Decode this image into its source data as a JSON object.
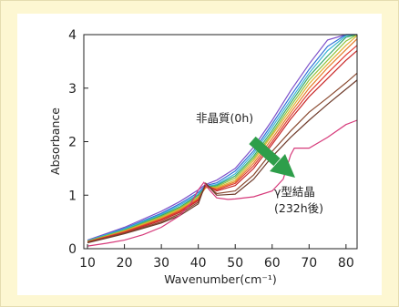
{
  "chart_data": {
    "type": "line",
    "title": "",
    "xlabel": "Wavenumber(cm⁻¹)",
    "ylabel": "Absorbance",
    "xlim": [
      9,
      83
    ],
    "ylim": [
      0,
      4
    ],
    "x_ticks": [
      "10",
      "20",
      "30",
      "40",
      "50",
      "60",
      "70",
      "80"
    ],
    "y_ticks": [
      "0",
      "1",
      "2",
      "3",
      "4"
    ],
    "grid": false,
    "annotations": {
      "start": "非晶質(0h)",
      "end_line1": "γ型結晶",
      "end_line2": "(232h後)"
    },
    "arrow_color": "#2e9e4a",
    "series": [
      {
        "color": "#7d4fc9",
        "x": [
          10,
          20,
          30,
          35,
          40,
          42,
          45,
          50,
          55,
          60,
          65,
          70,
          75,
          80,
          83
        ],
        "y": [
          0.16,
          0.4,
          0.7,
          0.88,
          1.1,
          1.2,
          1.28,
          1.5,
          1.9,
          2.4,
          2.95,
          3.45,
          3.9,
          4.05,
          4.05
        ]
      },
      {
        "color": "#2f6fd6",
        "x": [
          10,
          20,
          30,
          35,
          40,
          42,
          45,
          50,
          55,
          60,
          65,
          70,
          75,
          80,
          83
        ],
        "y": [
          0.15,
          0.38,
          0.66,
          0.84,
          1.05,
          1.18,
          1.23,
          1.45,
          1.83,
          2.33,
          2.85,
          3.35,
          3.78,
          4.0,
          4.05
        ]
      },
      {
        "color": "#39b5d6",
        "x": [
          10,
          20,
          30,
          35,
          40,
          42,
          45,
          50,
          55,
          60,
          65,
          70,
          75,
          80,
          83
        ],
        "y": [
          0.15,
          0.37,
          0.64,
          0.81,
          1.02,
          1.16,
          1.2,
          1.4,
          1.78,
          2.27,
          2.78,
          3.28,
          3.7,
          3.98,
          4.05
        ]
      },
      {
        "color": "#39a86a",
        "x": [
          10,
          20,
          30,
          35,
          40,
          42,
          45,
          50,
          55,
          60,
          65,
          70,
          75,
          80,
          83
        ],
        "y": [
          0.14,
          0.35,
          0.62,
          0.78,
          1.0,
          1.15,
          1.18,
          1.36,
          1.73,
          2.21,
          2.72,
          3.22,
          3.6,
          3.95,
          4.05
        ]
      },
      {
        "color": "#8cc43c",
        "x": [
          10,
          20,
          30,
          35,
          40,
          42,
          45,
          50,
          55,
          60,
          65,
          70,
          75,
          80,
          83
        ],
        "y": [
          0.14,
          0.34,
          0.6,
          0.76,
          0.97,
          1.14,
          1.16,
          1.32,
          1.69,
          2.16,
          2.66,
          3.15,
          3.52,
          3.88,
          4.02
        ]
      },
      {
        "color": "#e0b030",
        "x": [
          10,
          20,
          30,
          35,
          40,
          42,
          45,
          50,
          55,
          60,
          65,
          70,
          75,
          80,
          83
        ],
        "y": [
          0.13,
          0.33,
          0.58,
          0.74,
          0.95,
          1.14,
          1.14,
          1.28,
          1.65,
          2.12,
          2.6,
          3.08,
          3.45,
          3.8,
          3.98
        ]
      },
      {
        "color": "#e57c2a",
        "x": [
          10,
          20,
          30,
          35,
          40,
          42,
          45,
          50,
          55,
          60,
          65,
          70,
          75,
          80,
          83
        ],
        "y": [
          0.13,
          0.32,
          0.56,
          0.72,
          0.93,
          1.15,
          1.12,
          1.25,
          1.6,
          2.06,
          2.54,
          3.0,
          3.38,
          3.72,
          3.92
        ]
      },
      {
        "color": "#e03a2e",
        "x": [
          10,
          20,
          30,
          35,
          40,
          42,
          45,
          50,
          55,
          60,
          65,
          70,
          75,
          80,
          83
        ],
        "y": [
          0.13,
          0.31,
          0.55,
          0.7,
          0.92,
          1.18,
          1.1,
          1.22,
          1.55,
          2.0,
          2.48,
          2.92,
          3.28,
          3.62,
          3.8
        ]
      },
      {
        "color": "#c82828",
        "x": [
          10,
          20,
          30,
          35,
          40,
          42,
          45,
          50,
          55,
          60,
          65,
          70,
          75,
          80,
          83
        ],
        "y": [
          0.12,
          0.3,
          0.53,
          0.68,
          0.9,
          1.2,
          1.08,
          1.18,
          1.5,
          1.95,
          2.42,
          2.84,
          3.18,
          3.52,
          3.7
        ]
      },
      {
        "color": "#8a4a30",
        "x": [
          10,
          20,
          30,
          35,
          40,
          42,
          45,
          50,
          55,
          60,
          65,
          70,
          75,
          80,
          83
        ],
        "y": [
          0.12,
          0.29,
          0.5,
          0.65,
          0.87,
          1.22,
          1.03,
          1.08,
          1.38,
          1.82,
          2.2,
          2.55,
          2.82,
          3.1,
          3.28
        ]
      },
      {
        "color": "#6e3a2a",
        "x": [
          10,
          20,
          30,
          35,
          40,
          42,
          45,
          50,
          55,
          60,
          65,
          70,
          75,
          80,
          83
        ],
        "y": [
          0.11,
          0.28,
          0.48,
          0.62,
          0.84,
          1.22,
          1.0,
          1.02,
          1.3,
          1.72,
          2.08,
          2.4,
          2.7,
          2.98,
          3.15
        ]
      },
      {
        "color": "#d63a7a",
        "x": [
          10,
          15,
          20,
          25,
          30,
          35,
          38,
          40,
          41.5,
          43,
          45,
          48,
          50,
          55,
          60,
          63,
          65,
          66,
          70,
          75,
          80,
          83
        ],
        "y": [
          0.05,
          0.1,
          0.16,
          0.26,
          0.4,
          0.62,
          0.85,
          1.1,
          1.24,
          1.1,
          0.95,
          0.92,
          0.93,
          0.97,
          1.08,
          1.3,
          1.75,
          1.88,
          1.88,
          2.08,
          2.32,
          2.4
        ]
      }
    ]
  }
}
